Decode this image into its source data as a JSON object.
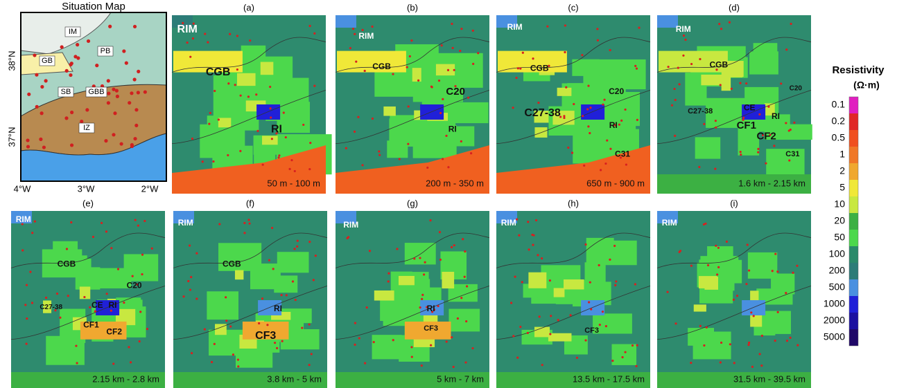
{
  "situation_map": {
    "title": "Situation Map",
    "labels": [
      "IM",
      "PB",
      "GB",
      "SB",
      "GBB",
      "IZ"
    ],
    "lat_labels": [
      "38°N",
      "37°N"
    ],
    "lon_labels": [
      "4°W",
      "3°W",
      "2°W"
    ]
  },
  "panels": [
    {
      "letter": "(a)",
      "depth": "50 m - 100 m",
      "labels": [
        "RIM",
        "CGB",
        "RI"
      ]
    },
    {
      "letter": "(b)",
      "depth": "200 m - 350 m",
      "labels": [
        "RIM",
        "CGB",
        "C20",
        "RI"
      ]
    },
    {
      "letter": "(c)",
      "depth": "650 m - 900 m",
      "labels": [
        "RIM",
        "CGB",
        "C20",
        "C27-38",
        "RI",
        "C31"
      ]
    },
    {
      "letter": "(d)",
      "depth": "1.6 km - 2.15 km",
      "labels": [
        "RIM",
        "CGB",
        "C20",
        "C27-38",
        "CE",
        "RI",
        "CF1",
        "CF2",
        "C31"
      ]
    },
    {
      "letter": "(e)",
      "depth": "2.15 km - 2.8 km",
      "labels": [
        "RIM",
        "CGB",
        "C20",
        "C27-38",
        "CE",
        "RI",
        "CF1",
        "CF2"
      ]
    },
    {
      "letter": "(f)",
      "depth": "3.8 km - 5 km",
      "labels": [
        "RIM",
        "CGB",
        "RI",
        "CF3"
      ]
    },
    {
      "letter": "(g)",
      "depth": "5 km - 7 km",
      "labels": [
        "RIM",
        "RI",
        "CF3"
      ]
    },
    {
      "letter": "(h)",
      "depth": "13.5 km - 17.5 km",
      "labels": [
        "RIM",
        "CF3"
      ]
    },
    {
      "letter": "(i)",
      "depth": "31.5 km - 39.5 km",
      "labels": [
        "RIM"
      ]
    }
  ],
  "colorbar": {
    "title": "Resistivity",
    "unit": "(Ω·m)",
    "labels": [
      0.1,
      0.2,
      0.5,
      1,
      2,
      5,
      10,
      20,
      50,
      100,
      200,
      500,
      1000,
      2000,
      5000
    ],
    "colors": [
      "#e020c0",
      "#e02828",
      "#f05020",
      "#f07828",
      "#f0a830",
      "#f0e838",
      "#c8e840",
      "#3cb043",
      "#4cd84c",
      "#2a8a6a",
      "#2c7c78",
      "#4a90e0",
      "#2020d8",
      "#1c10a0",
      "#200868"
    ]
  }
}
